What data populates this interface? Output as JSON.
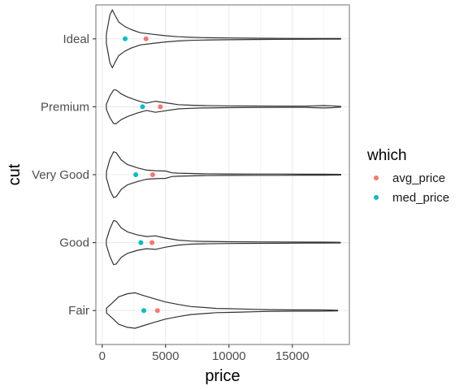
{
  "chart_data": {
    "type": "violin",
    "xlabel": "price",
    "ylabel": "cut",
    "xlim": [
      -500,
      19500
    ],
    "x_ticks": [
      0,
      5000,
      10000,
      15000
    ],
    "x_tick_labels": [
      "0",
      "5000",
      "10000",
      "15000"
    ],
    "categories": [
      "Ideal",
      "Premium",
      "Very Good",
      "Good",
      "Fair"
    ],
    "grid": true,
    "legend": {
      "title": "which",
      "position": "right",
      "entries": [
        {
          "label": "avg_price",
          "color": "#F8766D"
        },
        {
          "label": "med_price",
          "color": "#00BFC4"
        }
      ]
    },
    "series": [
      {
        "name": "avg_price",
        "color": "#F8766D",
        "values": [
          3458,
          4584,
          3982,
          3929,
          4359
        ]
      },
      {
        "name": "med_price",
        "color": "#00BFC4",
        "values": [
          1810,
          3185,
          2648,
          3050,
          3282
        ]
      }
    ],
    "violins": [
      {
        "category": "Ideal",
        "min": 326,
        "max": 18806,
        "density": [
          [
            326,
            0.15
          ],
          [
            600,
            0.78
          ],
          [
            800,
            0.95
          ],
          [
            1000,
            0.78
          ],
          [
            1300,
            0.55
          ],
          [
            1800,
            0.4
          ],
          [
            2300,
            0.3
          ],
          [
            3000,
            0.2
          ],
          [
            4000,
            0.15
          ],
          [
            5000,
            0.1
          ],
          [
            6000,
            0.07
          ],
          [
            7000,
            0.05
          ],
          [
            8000,
            0.04
          ],
          [
            10000,
            0.03
          ],
          [
            12000,
            0.02
          ],
          [
            14000,
            0.015
          ],
          [
            16000,
            0.012
          ],
          [
            17500,
            0.01
          ],
          [
            18806,
            0.01
          ]
        ]
      },
      {
        "category": "Premium",
        "min": 326,
        "max": 18823,
        "density": [
          [
            326,
            0.08
          ],
          [
            600,
            0.35
          ],
          [
            900,
            0.55
          ],
          [
            1100,
            0.55
          ],
          [
            1500,
            0.42
          ],
          [
            2000,
            0.32
          ],
          [
            2800,
            0.2
          ],
          [
            3500,
            0.12
          ],
          [
            4200,
            0.18
          ],
          [
            5000,
            0.13
          ],
          [
            6000,
            0.07
          ],
          [
            7000,
            0.05
          ],
          [
            8000,
            0.04
          ],
          [
            10000,
            0.03
          ],
          [
            12000,
            0.025
          ],
          [
            14000,
            0.02
          ],
          [
            16000,
            0.02
          ],
          [
            17500,
            0.04
          ],
          [
            18200,
            0.03
          ],
          [
            18823,
            0.01
          ]
        ]
      },
      {
        "category": "Very Good",
        "min": 336,
        "max": 18818,
        "density": [
          [
            336,
            0.1
          ],
          [
            600,
            0.5
          ],
          [
            900,
            0.75
          ],
          [
            1100,
            0.72
          ],
          [
            1500,
            0.48
          ],
          [
            2000,
            0.33
          ],
          [
            2800,
            0.22
          ],
          [
            3500,
            0.15
          ],
          [
            4200,
            0.13
          ],
          [
            5000,
            0.12
          ],
          [
            5500,
            0.06
          ],
          [
            6000,
            0.05
          ],
          [
            7000,
            0.04
          ],
          [
            8000,
            0.03
          ],
          [
            10000,
            0.025
          ],
          [
            12000,
            0.02
          ],
          [
            14000,
            0.02
          ],
          [
            16000,
            0.015
          ],
          [
            17500,
            0.015
          ],
          [
            18818,
            0.01
          ]
        ]
      },
      {
        "category": "Good",
        "min": 327,
        "max": 18788,
        "density": [
          [
            327,
            0.08
          ],
          [
            600,
            0.45
          ],
          [
            900,
            0.72
          ],
          [
            1100,
            0.7
          ],
          [
            1500,
            0.48
          ],
          [
            2000,
            0.35
          ],
          [
            2800,
            0.25
          ],
          [
            3500,
            0.2
          ],
          [
            4200,
            0.22
          ],
          [
            5000,
            0.15
          ],
          [
            6000,
            0.08
          ],
          [
            7000,
            0.05
          ],
          [
            8000,
            0.04
          ],
          [
            10000,
            0.03
          ],
          [
            12000,
            0.025
          ],
          [
            14000,
            0.02
          ],
          [
            16000,
            0.015
          ],
          [
            17500,
            0.015
          ],
          [
            18788,
            0.01
          ]
        ]
      },
      {
        "category": "Fair",
        "min": 337,
        "max": 18574,
        "density": [
          [
            337,
            0.08
          ],
          [
            800,
            0.25
          ],
          [
            1300,
            0.45
          ],
          [
            2000,
            0.55
          ],
          [
            2600,
            0.58
          ],
          [
            3200,
            0.5
          ],
          [
            4000,
            0.4
          ],
          [
            5000,
            0.28
          ],
          [
            6000,
            0.2
          ],
          [
            7000,
            0.13
          ],
          [
            8000,
            0.1
          ],
          [
            9000,
            0.07
          ],
          [
            10000,
            0.06
          ],
          [
            11000,
            0.05
          ],
          [
            12000,
            0.04
          ],
          [
            13000,
            0.03
          ],
          [
            15000,
            0.02
          ],
          [
            17000,
            0.02
          ],
          [
            18000,
            0.015
          ],
          [
            18574,
            0.01
          ]
        ]
      }
    ]
  }
}
